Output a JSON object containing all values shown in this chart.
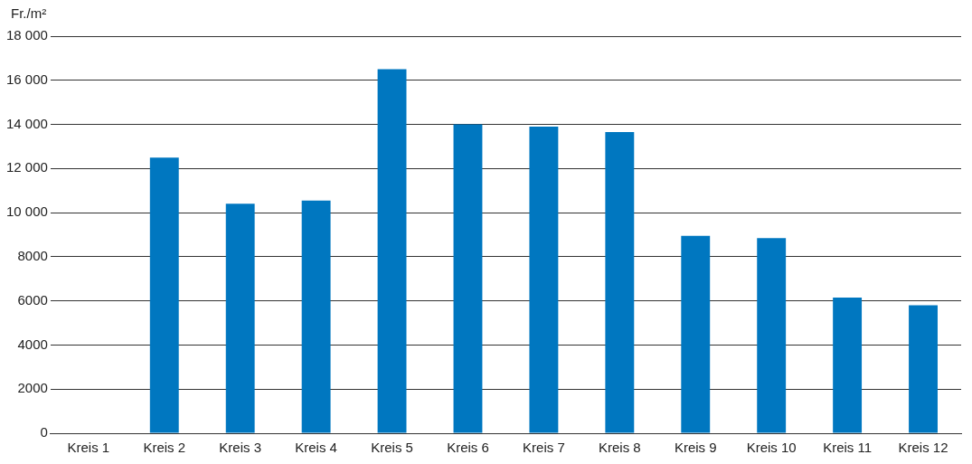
{
  "chart_data": {
    "type": "bar",
    "ylabel": "Fr./m²",
    "categories": [
      "Kreis 1",
      "Kreis 2",
      "Kreis 3",
      "Kreis 4",
      "Kreis 5",
      "Kreis 6",
      "Kreis 7",
      "Kreis 8",
      "Kreis 9",
      "Kreis 10",
      "Kreis 11",
      "Kreis 12"
    ],
    "values": [
      null,
      12500,
      10400,
      10550,
      16500,
      14000,
      13900,
      13650,
      8950,
      8850,
      6150,
      5800
    ],
    "color": "#0077c0",
    "ylim": [
      0,
      18000
    ],
    "yticks": [
      0,
      2000,
      4000,
      6000,
      8000,
      {
        "value": 10000,
        "label": "10 000"
      },
      {
        "value": 12000,
        "label": "12 000"
      },
      {
        "value": 14000,
        "label": "14 000"
      },
      {
        "value": 16000,
        "label": "16 000"
      },
      {
        "value": 18000,
        "label": "18 000"
      }
    ],
    "grid": "y"
  }
}
